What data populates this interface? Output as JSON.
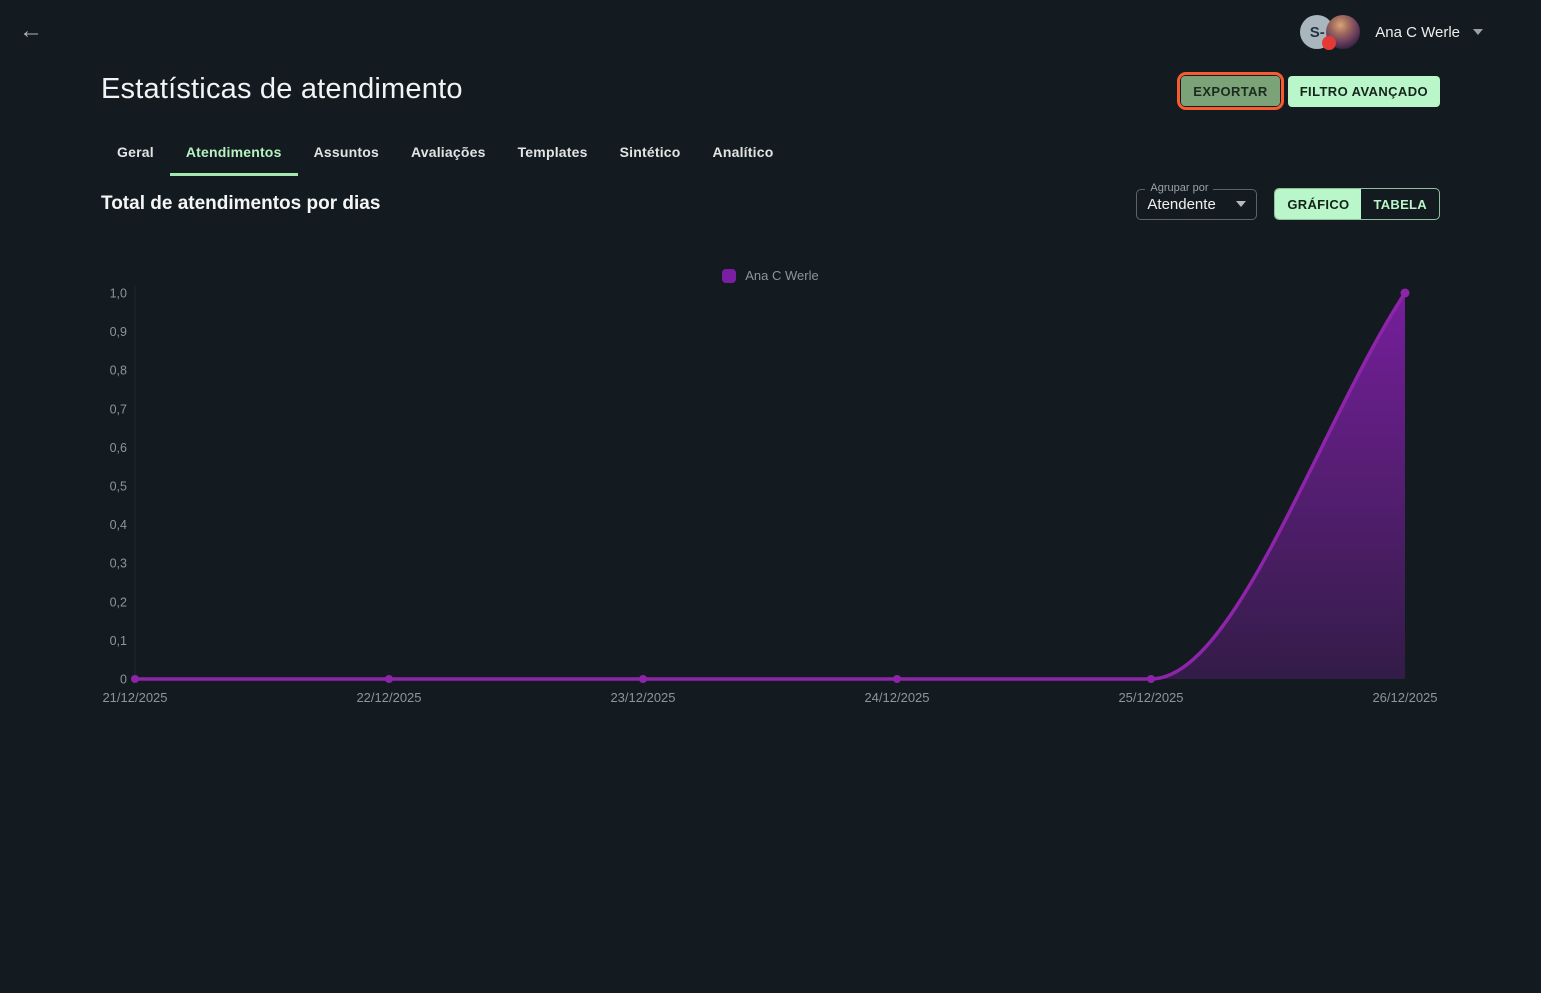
{
  "header": {
    "back_icon": "←",
    "user_name": "Ana C Werle",
    "avatar_initials": "S-"
  },
  "page": {
    "title": "Estatísticas de atendimento",
    "export_button": "EXPORTAR",
    "filter_button": "FILTRO AVANÇADO"
  },
  "tabs": [
    {
      "label": "Geral",
      "active": false
    },
    {
      "label": "Atendimentos",
      "active": true
    },
    {
      "label": "Assuntos",
      "active": false
    },
    {
      "label": "Avaliações",
      "active": false
    },
    {
      "label": "Templates",
      "active": false
    },
    {
      "label": "Sintético",
      "active": false
    },
    {
      "label": "Analítico",
      "active": false
    }
  ],
  "section": {
    "title": "Total de atendimentos por dias",
    "group_by_label": "Agrupar por",
    "group_by_value": "Atendente",
    "view_chart_button": "GRÁFICO",
    "view_table_button": "TABELA",
    "active_view": "GRÁFICO"
  },
  "colors": {
    "accent_green": "#b9f6ca",
    "highlight_orange": "#f85c2e",
    "series_purple": "#8e24aa",
    "area_purple": "#7b1fa2",
    "badge_red": "#e53935",
    "bg": "#141b20",
    "txt_gray": "#8d9599"
  },
  "chart_data": {
    "type": "area",
    "title": "Total de atendimentos por dias",
    "x": [
      "21/12/2025",
      "22/12/2025",
      "23/12/2025",
      "24/12/2025",
      "25/12/2025",
      "26/12/2025"
    ],
    "series": [
      {
        "name": "Ana C Werle",
        "color": "#8e24aa",
        "values": [
          0,
          0,
          0,
          0,
          0,
          1.0
        ]
      }
    ],
    "ylim": [
      0,
      1
    ],
    "yticks": [
      {
        "value": 0,
        "label": "0"
      },
      {
        "value": 0.1,
        "label": "0,1"
      },
      {
        "value": 0.2,
        "label": "0,2"
      },
      {
        "value": 0.3,
        "label": "0,3"
      },
      {
        "value": 0.4,
        "label": "0,4"
      },
      {
        "value": 0.5,
        "label": "0,5"
      },
      {
        "value": 0.6,
        "label": "0,6"
      },
      {
        "value": 0.7,
        "label": "0,7"
      },
      {
        "value": 0.8,
        "label": "0,8"
      },
      {
        "value": 0.9,
        "label": "0,9"
      },
      {
        "value": 1.0,
        "label": "1,0"
      }
    ],
    "legend": [
      "Ana C Werle"
    ],
    "legend_position": "top-center",
    "grid": false,
    "curve": "monotone"
  }
}
